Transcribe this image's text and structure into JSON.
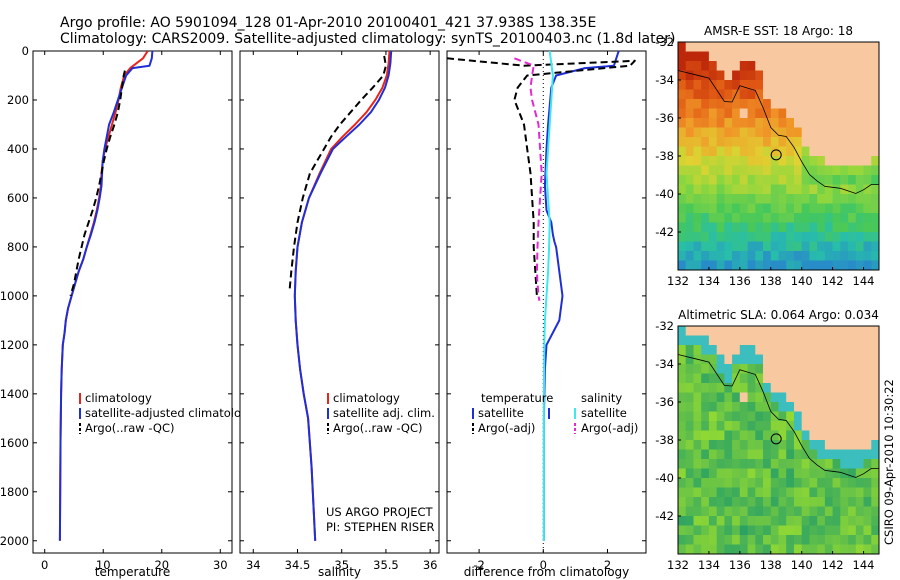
{
  "header": {
    "line1": "Argo profile: AO 5901094_128 01-Apr-2010 20100401_421 37.938S 138.35E",
    "line2": "Climatology: CARS2009. Satellite-adjusted climatology: synTS_20100403.nc (1.8d later)"
  },
  "stamp": "CSIRO 09-Apr-2010 10:30:22",
  "project_note": {
    "line1": "US ARGO PROJECT",
    "line2": "PI: STEPHEN RISER"
  },
  "colors": {
    "climatology": "#e8251a",
    "satellite": "#1f2fd6",
    "argo": "#000000",
    "satellite_sal": "#3ee8ef",
    "argo_sal_adj": "#e22ad0"
  },
  "chart_data": [
    {
      "id": "temperature",
      "type": "line",
      "xlabel": "temperature",
      "xlim": [
        -2,
        32
      ],
      "ylim": [
        2050,
        0
      ],
      "xticks": [
        0,
        10,
        20,
        30
      ],
      "yticks": [
        0,
        200,
        400,
        600,
        800,
        1000,
        1200,
        1400,
        1600,
        1800,
        2000
      ],
      "legend": [
        "climatology",
        "satellite-adjusted climatolog",
        "Argo(..raw -QC)"
      ],
      "series": [
        {
          "name": "climatology",
          "color": "#e8251a",
          "dash": "",
          "width": 2,
          "x": [
            17.6,
            16.8,
            14.6,
            13.6,
            13.0,
            12.6,
            12.1,
            11.5,
            10.9,
            10.3,
            9.9,
            9.7,
            9.6,
            9.3,
            8.9,
            8.4,
            7.8,
            7.2,
            6.6,
            5.8,
            5.2,
            4.6,
            4.0,
            3.6,
            3.4,
            3.1,
            2.9,
            2.8,
            2.75,
            2.7,
            2.6
          ],
          "y": [
            0,
            30,
            70,
            100,
            150,
            200,
            250,
            300,
            350,
            400,
            450,
            500,
            550,
            600,
            650,
            700,
            750,
            800,
            850,
            900,
            950,
            1000,
            1050,
            1100,
            1150,
            1200,
            1300,
            1400,
            1500,
            1600,
            2000
          ]
        },
        {
          "name": "satellite-adjusted climatolog",
          "color": "#1f2fd6",
          "dash": "",
          "width": 2,
          "x": [
            18.4,
            18.3,
            17.9,
            15.0,
            13.9,
            13.2,
            12.5,
            11.8,
            11.0,
            10.2,
            9.9,
            9.8,
            9.7,
            9.4,
            9.0,
            8.5,
            7.9,
            7.2,
            6.6,
            5.8,
            5.2,
            4.6,
            4.0,
            3.6,
            3.4,
            3.1,
            2.9,
            2.8,
            2.75,
            2.7,
            2.6
          ],
          "y": [
            0,
            30,
            60,
            70,
            100,
            150,
            200,
            250,
            300,
            400,
            450,
            500,
            550,
            600,
            650,
            700,
            750,
            800,
            850,
            900,
            950,
            1000,
            1050,
            1100,
            1150,
            1200,
            1300,
            1400,
            1500,
            1600,
            2000
          ]
        },
        {
          "name": "Argo(..raw -QC)",
          "color": "#000000",
          "dash": "7 4",
          "width": 2,
          "x": [
            13.7,
            13.5,
            13.2,
            12.9,
            12.5,
            11.9,
            11.2,
            10.6,
            10.1,
            9.7,
            9.3,
            8.8,
            8.2,
            7.5,
            6.8,
            5.8,
            5.0,
            4.4
          ],
          "y": [
            80,
            100,
            150,
            200,
            250,
            300,
            350,
            400,
            450,
            500,
            550,
            600,
            650,
            700,
            750,
            850,
            950,
            1000
          ]
        }
      ]
    },
    {
      "id": "salinity",
      "type": "line",
      "xlabel": "salinity",
      "xlim": [
        33.85,
        36.1
      ],
      "ylim": [
        2050,
        0
      ],
      "xticks": [
        34,
        34.5,
        35,
        35.5,
        36
      ],
      "xtick_labels": [
        "34",
        "34.5",
        "35",
        "35.5",
        "36"
      ],
      "legend": [
        "climatology",
        "satellite adj. clim.",
        "Argo(..raw -QC)"
      ],
      "series": [
        {
          "name": "climatology",
          "color": "#e8251a",
          "dash": "",
          "width": 2,
          "x": [
            35.54,
            35.53,
            35.51,
            35.46,
            35.38,
            35.28,
            35.15,
            35.01,
            34.88,
            34.75,
            34.63,
            34.55,
            34.5,
            34.48,
            34.47,
            34.48,
            34.5,
            34.53,
            34.57,
            34.62,
            34.66,
            34.7
          ],
          "y": [
            0,
            50,
            100,
            150,
            200,
            250,
            300,
            350,
            400,
            500,
            600,
            700,
            800,
            900,
            1000,
            1100,
            1200,
            1300,
            1400,
            1500,
            1700,
            2000
          ]
        },
        {
          "name": "satellite adj. clim.",
          "color": "#1f2fd6",
          "dash": "",
          "width": 2,
          "x": [
            35.56,
            35.55,
            35.53,
            35.49,
            35.42,
            35.33,
            35.2,
            35.05,
            34.9,
            34.76,
            34.63,
            34.55,
            34.5,
            34.48,
            34.47,
            34.48,
            34.5,
            34.53,
            34.57,
            34.62,
            34.66,
            34.7
          ],
          "y": [
            0,
            50,
            100,
            150,
            200,
            250,
            300,
            350,
            400,
            500,
            600,
            700,
            800,
            900,
            1000,
            1100,
            1200,
            1300,
            1400,
            1500,
            1700,
            2000
          ]
        },
        {
          "name": "Argo(..raw -QC)",
          "color": "#000000",
          "dash": "7 4",
          "width": 2,
          "x": [
            35.48,
            35.5,
            35.47,
            35.35,
            35.22,
            35.1,
            34.98,
            34.88,
            34.8,
            34.72,
            34.64,
            34.56,
            34.5,
            34.46,
            34.43,
            34.41
          ],
          "y": [
            20,
            60,
            100,
            150,
            200,
            250,
            300,
            350,
            400,
            450,
            500,
            600,
            700,
            800,
            900,
            980
          ]
        }
      ]
    },
    {
      "id": "difference",
      "type": "line",
      "xlabel": "difference from climatology",
      "xlim": [
        -3,
        3.2
      ],
      "ylim": [
        2050,
        0
      ],
      "xticks": [
        -2,
        0,
        2
      ],
      "legend_headers": [
        "temperature",
        "salinity"
      ],
      "legend": [
        "satellite",
        "Argo(-adj)",
        "satellite",
        "Argo(-adj)"
      ],
      "series": [
        {
          "name": "temperature satellite",
          "color": "#1f2fd6",
          "dash": "",
          "width": 2,
          "x": [
            2.35,
            2.2,
            1.3,
            0.4,
            0.25,
            0.15,
            0.1,
            0.05,
            0.1,
            0.25,
            0.3,
            0.35,
            0.4,
            0.45,
            0.5,
            0.55,
            0.6,
            0.55,
            0.5,
            0.3,
            0.1,
            0.05,
            0.02,
            0.02,
            0.02,
            0.02
          ],
          "y": [
            0,
            60,
            70,
            100,
            150,
            300,
            400,
            550,
            650,
            700,
            750,
            780,
            800,
            850,
            900,
            950,
            1000,
            1050,
            1100,
            1150,
            1200,
            1300,
            1500,
            1700,
            1900,
            2000
          ]
        },
        {
          "name": "temperature Argo(-adj)",
          "color": "#000000",
          "dash": "7 4",
          "width": 2,
          "x": [
            -3.0,
            -0.6,
            2.85,
            2.7,
            -0.5,
            -0.8,
            -0.9,
            -0.75,
            -0.6,
            -0.5,
            -0.4,
            -0.35,
            -0.3,
            -0.3,
            -0.25,
            -0.2
          ],
          "y": [
            30,
            60,
            40,
            60,
            100,
            150,
            200,
            250,
            300,
            400,
            500,
            600,
            700,
            800,
            900,
            1000
          ]
        },
        {
          "name": "salinity satellite",
          "color": "#3ee8ef",
          "dash": "",
          "width": 2,
          "x": [
            0.2,
            0.3,
            0.25,
            0.2,
            0.15,
            0.1,
            0.15,
            0.2,
            0.18,
            0.15,
            0.1,
            0.05,
            0.03,
            0.02,
            0.02,
            0.02,
            0.02
          ],
          "y": [
            0,
            100,
            200,
            300,
            400,
            500,
            600,
            700,
            800,
            900,
            1000,
            1100,
            1200,
            1400,
            1600,
            1800,
            2000
          ]
        },
        {
          "name": "salinity Argo(-adj)",
          "color": "#e22ad0",
          "dash": "7 4",
          "width": 2,
          "x": [
            -0.9,
            -0.3,
            -0.35,
            -0.4,
            -0.35,
            -0.25,
            -0.15,
            -0.1,
            -0.05,
            -0.1,
            -0.15,
            -0.18,
            -0.2,
            -0.18,
            -0.15,
            -0.12
          ],
          "y": [
            30,
            60,
            100,
            150,
            200,
            250,
            300,
            400,
            500,
            600,
            700,
            800,
            900,
            950,
            1000,
            1020
          ]
        }
      ]
    },
    {
      "id": "sst_map",
      "type": "heatmap",
      "title": "AMSR-E SST: 18 Argo: 18",
      "xlim": [
        132,
        145
      ],
      "ylim": [
        -44,
        -32
      ],
      "xticks": [
        132,
        134,
        136,
        138,
        140,
        142,
        144
      ],
      "yticks": [
        -32,
        -34,
        -36,
        -38,
        -40,
        -42
      ],
      "marker": {
        "lon": 138.35,
        "lat": -37.94
      }
    },
    {
      "id": "sla_map",
      "type": "heatmap",
      "title": "Altimetric SLA: 0.064 Argo: 0.034",
      "xlim": [
        132,
        145
      ],
      "ylim": [
        -44,
        -32
      ],
      "xticks": [
        132,
        134,
        136,
        138,
        140,
        142,
        144
      ],
      "yticks": [
        -32,
        -34,
        -36,
        -38,
        -40,
        -42
      ],
      "marker": {
        "lon": 138.35,
        "lat": -37.94
      }
    }
  ]
}
